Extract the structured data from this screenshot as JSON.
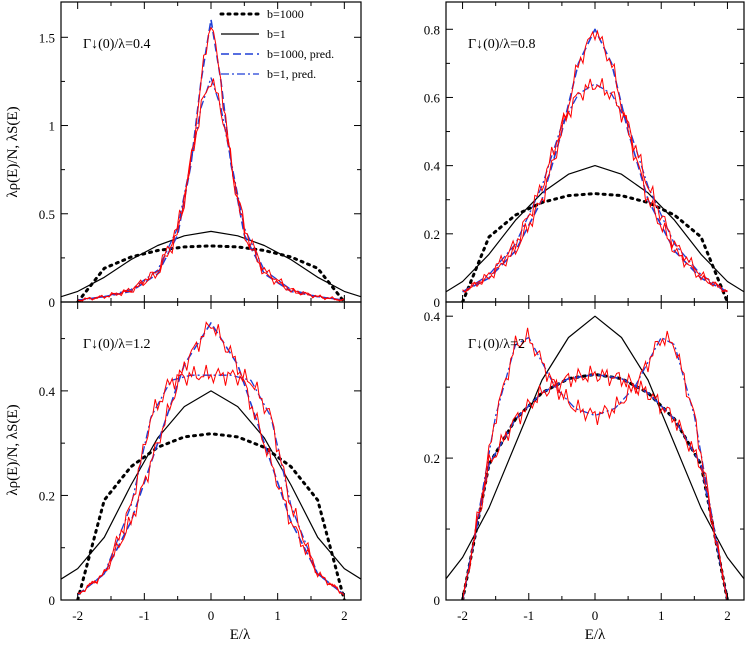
{
  "figure": {
    "xlabel": "E/λ",
    "ylabel_top": "λρ(E)/N, λS(E)",
    "ylabel_bottom": "λρ(E)/N, λS(E)",
    "legend": [
      {
        "label": "b=1000",
        "style": "dotted",
        "color": "#000000"
      },
      {
        "label": "b=1",
        "style": "solid",
        "color": "#000000"
      },
      {
        "label": "b=1000, pred.",
        "style": "dashed",
        "color": "#1f3fd6"
      },
      {
        "label": "b=1, pred.",
        "style": "dashdot",
        "color": "#1f3fd6"
      }
    ],
    "colors": {
      "b1000": "#000000",
      "b1": "#000000",
      "pred": "#1f3fd6",
      "hist": "#ff0000"
    }
  },
  "chart_data": [
    {
      "type": "line",
      "panel_label": "Γ↓(0)/λ=0.4",
      "gamma": 0.4,
      "xlabel": "",
      "ylabel": "λρ(E)/N, λS(E)",
      "xlim": [
        -2.25,
        2.25
      ],
      "ylim": [
        0,
        1.7
      ],
      "yticks": [
        0,
        0.5,
        1,
        1.5
      ],
      "xticks": [
        -2,
        -1,
        0,
        1,
        2
      ],
      "legend_position": "top-right",
      "series": [
        {
          "name": "b=1000",
          "style": "dotted",
          "x": [
            -2.0,
            -1.6,
            -1.2,
            -0.8,
            -0.4,
            0.0,
            0.4,
            0.8,
            1.2,
            1.6,
            2.0
          ],
          "y": [
            0.0,
            0.191,
            0.255,
            0.292,
            0.312,
            0.318,
            0.312,
            0.292,
            0.255,
            0.191,
            0.0
          ]
        },
        {
          "name": "b=1",
          "style": "solid",
          "x": [
            -2.25,
            -2.0,
            -1.6,
            -1.2,
            -0.8,
            -0.4,
            0.0,
            0.4,
            0.8,
            1.2,
            1.6,
            2.0,
            2.25
          ],
          "y": [
            0.03,
            0.06,
            0.14,
            0.24,
            0.32,
            0.375,
            0.4,
            0.375,
            0.32,
            0.24,
            0.14,
            0.06,
            0.03
          ]
        },
        {
          "name": "b=1000, pred.",
          "style": "dashed",
          "x": [
            -2.0,
            -1.6,
            -1.2,
            -0.8,
            -0.5,
            -0.3,
            -0.15,
            0.0,
            0.15,
            0.3,
            0.5,
            0.8,
            1.2,
            1.6,
            2.0
          ],
          "y": [
            0.01,
            0.03,
            0.06,
            0.16,
            0.38,
            0.78,
            1.25,
            1.6,
            1.25,
            0.78,
            0.38,
            0.16,
            0.06,
            0.03,
            0.01
          ]
        },
        {
          "name": "b=1, pred.",
          "style": "dashdot",
          "x": [
            -2.0,
            -1.6,
            -1.2,
            -0.8,
            -0.5,
            -0.3,
            -0.15,
            0.0,
            0.15,
            0.3,
            0.5,
            0.8,
            1.2,
            1.6,
            2.0
          ],
          "y": [
            0.01,
            0.03,
            0.07,
            0.18,
            0.42,
            0.8,
            1.1,
            1.27,
            1.1,
            0.8,
            0.42,
            0.18,
            0.07,
            0.03,
            0.01
          ]
        }
      ]
    },
    {
      "type": "line",
      "panel_label": "Γ↓(0)/λ=0.8",
      "gamma": 0.8,
      "xlabel": "",
      "ylabel": "",
      "xlim": [
        -2.25,
        2.25
      ],
      "ylim": [
        0,
        0.88
      ],
      "yticks": [
        0,
        0.2,
        0.4,
        0.6,
        0.8
      ],
      "xticks": [
        -2,
        -1,
        0,
        1,
        2
      ],
      "series": [
        {
          "name": "b=1000",
          "style": "dotted",
          "x": [
            -2.0,
            -1.6,
            -1.2,
            -0.8,
            -0.4,
            0.0,
            0.4,
            0.8,
            1.2,
            1.6,
            2.0
          ],
          "y": [
            0.0,
            0.191,
            0.255,
            0.292,
            0.312,
            0.318,
            0.312,
            0.292,
            0.255,
            0.191,
            0.0
          ]
        },
        {
          "name": "b=1",
          "style": "solid",
          "x": [
            -2.25,
            -2.0,
            -1.6,
            -1.2,
            -0.8,
            -0.4,
            0.0,
            0.4,
            0.8,
            1.2,
            1.6,
            2.0,
            2.25
          ],
          "y": [
            0.03,
            0.06,
            0.14,
            0.24,
            0.32,
            0.375,
            0.4,
            0.375,
            0.32,
            0.24,
            0.14,
            0.06,
            0.03
          ]
        },
        {
          "name": "b=1000, pred.",
          "style": "dashed",
          "x": [
            -2.0,
            -1.6,
            -1.2,
            -0.8,
            -0.5,
            -0.25,
            0.0,
            0.25,
            0.5,
            0.8,
            1.2,
            1.6,
            2.0
          ],
          "y": [
            0.03,
            0.07,
            0.15,
            0.3,
            0.5,
            0.7,
            0.8,
            0.7,
            0.5,
            0.3,
            0.15,
            0.07,
            0.03
          ]
        },
        {
          "name": "b=1, pred.",
          "style": "dashdot",
          "x": [
            -2.0,
            -1.6,
            -1.2,
            -0.8,
            -0.5,
            -0.25,
            0.0,
            0.25,
            0.5,
            0.8,
            1.2,
            1.6,
            2.0
          ],
          "y": [
            0.03,
            0.08,
            0.17,
            0.34,
            0.52,
            0.61,
            0.64,
            0.61,
            0.52,
            0.34,
            0.17,
            0.08,
            0.03
          ]
        }
      ]
    },
    {
      "type": "line",
      "panel_label": "Γ↓(0)/λ=1.2",
      "gamma": 1.2,
      "xlabel": "E/λ",
      "ylabel": "λρ(E)/N, λS(E)",
      "xlim": [
        -2.25,
        2.25
      ],
      "ylim": [
        0,
        0.57
      ],
      "yticks": [
        0,
        0.2,
        0.4
      ],
      "xticks": [
        -2,
        -1,
        0,
        1,
        2
      ],
      "series": [
        {
          "name": "b=1000",
          "style": "dotted",
          "x": [
            -2.0,
            -1.6,
            -1.2,
            -0.8,
            -0.4,
            0.0,
            0.4,
            0.8,
            1.2,
            1.6,
            2.0
          ],
          "y": [
            0.0,
            0.191,
            0.255,
            0.292,
            0.312,
            0.318,
            0.312,
            0.292,
            0.255,
            0.191,
            0.0
          ]
        },
        {
          "name": "b=1",
          "style": "solid",
          "x": [
            -2.25,
            -2.0,
            -1.6,
            -1.2,
            -0.8,
            -0.4,
            0.0,
            0.4,
            0.8,
            1.2,
            1.6,
            2.0,
            2.25
          ],
          "y": [
            0.04,
            0.06,
            0.12,
            0.22,
            0.31,
            0.37,
            0.4,
            0.37,
            0.31,
            0.22,
            0.12,
            0.06,
            0.04
          ]
        },
        {
          "name": "b=1000, pred.",
          "style": "dashed",
          "x": [
            -2.0,
            -1.6,
            -1.2,
            -0.8,
            -0.4,
            0.0,
            0.4,
            0.8,
            1.2,
            1.6,
            2.0
          ],
          "y": [
            0.01,
            0.05,
            0.15,
            0.3,
            0.45,
            0.53,
            0.45,
            0.3,
            0.15,
            0.05,
            0.01
          ]
        },
        {
          "name": "b=1, pred.",
          "style": "dashdot",
          "x": [
            -2.0,
            -1.6,
            -1.2,
            -0.9,
            -0.6,
            -0.3,
            0.0,
            0.3,
            0.6,
            0.9,
            1.2,
            1.6,
            2.0
          ],
          "y": [
            0.01,
            0.05,
            0.18,
            0.35,
            0.42,
            0.43,
            0.43,
            0.43,
            0.42,
            0.35,
            0.18,
            0.05,
            0.01
          ]
        }
      ]
    },
    {
      "type": "line",
      "panel_label": "Γ↓(0)/λ=2",
      "gamma": 2,
      "xlabel": "E/λ",
      "ylabel": "",
      "xlim": [
        -2.25,
        2.25
      ],
      "ylim": [
        0,
        0.42
      ],
      "yticks": [
        0,
        0.2,
        0.4
      ],
      "xticks": [
        -2,
        -1,
        0,
        1,
        2
      ],
      "series": [
        {
          "name": "b=1000",
          "style": "dotted",
          "x": [
            -2.0,
            -1.6,
            -1.2,
            -0.8,
            -0.4,
            0.0,
            0.4,
            0.8,
            1.2,
            1.6,
            2.0
          ],
          "y": [
            0.0,
            0.191,
            0.255,
            0.292,
            0.312,
            0.318,
            0.312,
            0.292,
            0.255,
            0.191,
            0.0
          ]
        },
        {
          "name": "b=1",
          "style": "solid",
          "x": [
            -2.25,
            -2.0,
            -1.6,
            -1.2,
            -0.8,
            -0.4,
            0.0,
            0.4,
            0.8,
            1.2,
            1.6,
            2.0,
            2.25
          ],
          "y": [
            0.03,
            0.06,
            0.13,
            0.22,
            0.31,
            0.37,
            0.4,
            0.37,
            0.31,
            0.22,
            0.13,
            0.06,
            0.03
          ]
        },
        {
          "name": "b=1000, pred.",
          "style": "dashed",
          "x": [
            -2.0,
            -1.6,
            -1.2,
            -0.8,
            -0.4,
            0.0,
            0.4,
            0.8,
            1.2,
            1.6,
            2.0
          ],
          "y": [
            0.0,
            0.191,
            0.255,
            0.292,
            0.312,
            0.318,
            0.312,
            0.292,
            0.255,
            0.191,
            0.0
          ]
        },
        {
          "name": "b=1, pred.",
          "style": "dashdot",
          "x": [
            -2.0,
            -1.8,
            -1.5,
            -1.2,
            -1.0,
            -0.6,
            -0.3,
            0.0,
            0.3,
            0.6,
            1.0,
            1.2,
            1.5,
            1.8,
            2.0
          ],
          "y": [
            0.0,
            0.1,
            0.26,
            0.36,
            0.37,
            0.3,
            0.27,
            0.26,
            0.27,
            0.3,
            0.37,
            0.36,
            0.26,
            0.1,
            0.0
          ]
        }
      ]
    }
  ]
}
